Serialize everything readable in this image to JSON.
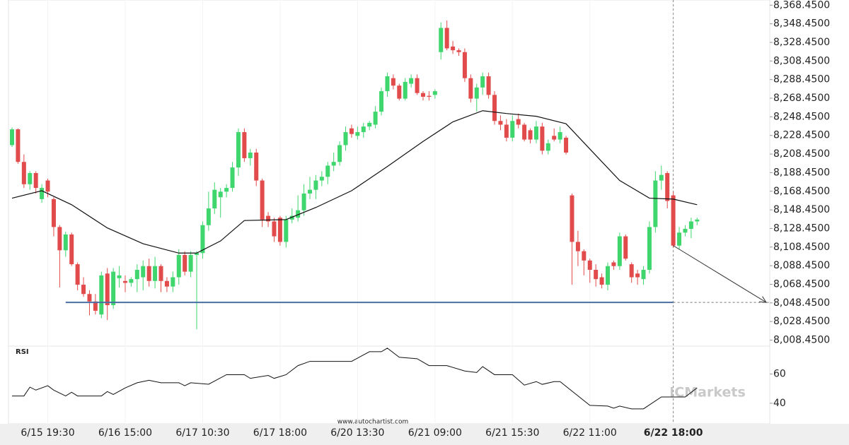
{
  "chart_data": {
    "type": "candlestick",
    "categories": [
      null,
      null,
      null,
      null,
      null,
      null,
      "6/15 19:30",
      null,
      null,
      null,
      null,
      null,
      null,
      null,
      null,
      null,
      null,
      null,
      null,
      "6/16 15:00",
      null,
      null,
      null,
      null,
      null,
      null,
      null,
      null,
      null,
      null,
      null,
      null,
      "6/17 10:30",
      null,
      null,
      null,
      null,
      null,
      null,
      null,
      null,
      null,
      null,
      null,
      null,
      "6/17 18:00",
      null,
      null,
      null,
      null,
      null,
      null,
      null,
      null,
      null,
      null,
      null,
      null,
      "6/20 13:30",
      null,
      null,
      null,
      null,
      null,
      null,
      null,
      null,
      null,
      null,
      null,
      null,
      "6/21 09:00",
      null,
      null,
      null,
      null,
      null,
      null,
      null,
      null,
      null,
      null,
      null,
      null,
      "6/21 15:30",
      null,
      null,
      null,
      null,
      null,
      null,
      null,
      null,
      null,
      null,
      null,
      null,
      "6/22 11:00",
      null,
      null,
      null,
      null,
      null,
      null,
      null,
      null,
      null,
      null,
      null,
      null,
      null,
      "6/22 18:00",
      null,
      null,
      null,
      null
    ],
    "open": [
      8218,
      8235,
      8200,
      8176,
      8188,
      8160,
      8180,
      8160,
      8130,
      8105,
      8122,
      8090,
      8068,
      8058,
      8050,
      8036,
      8080,
      8046,
      8075,
      8072,
      8070,
      8074,
      8076,
      8088,
      8072,
      8088,
      8072,
      8066,
      8076,
      8100,
      8082,
      8100,
      8102,
      8132,
      8150,
      8162,
      8168,
      8172,
      8194,
      8232,
      8204,
      8210,
      8180,
      8142,
      8136,
      8140,
      8114,
      8138,
      8140,
      8148,
      8166,
      8170,
      8180,
      8184,
      8196,
      8200,
      8218,
      8236,
      8228,
      8232,
      8238,
      8240,
      8254,
      8276,
      8290,
      8282,
      8268,
      8284,
      8290,
      8274,
      8271,
      8272,
      8318,
      8344,
      8324,
      8320,
      8318,
      8290,
      8268,
      8280,
      8292,
      8272,
      8244,
      8240,
      8226,
      8246,
      8240,
      8234,
      8224,
      8238,
      8212,
      8228,
      8224,
      8226,
      8164,
      8114,
      8104,
      8094,
      8084,
      8076,
      8068,
      8092,
      8088,
      8120,
      8090,
      8080,
      8074,
      8084,
      8130,
      8180,
      8188,
      8164,
      8110,
      8124,
      8128,
      8136
    ],
    "high": [
      8237,
      8236,
      8208,
      8190,
      8190,
      8176,
      8182,
      8162,
      8132,
      8125,
      8124,
      8092,
      8076,
      8062,
      8058,
      8082,
      8086,
      8086,
      8088,
      8078,
      8076,
      8090,
      8094,
      8096,
      8098,
      8090,
      8076,
      8082,
      8106,
      8104,
      8104,
      8104,
      8136,
      8168,
      8178,
      8172,
      8176,
      8200,
      8236,
      8236,
      8214,
      8214,
      8182,
      8146,
      8140,
      8142,
      8142,
      8150,
      8164,
      8176,
      8184,
      8186,
      8190,
      8200,
      8210,
      8222,
      8238,
      8240,
      8238,
      8242,
      8244,
      8260,
      8280,
      8296,
      8294,
      8284,
      8290,
      8294,
      8294,
      8276,
      8276,
      8278,
      8350,
      8352,
      8330,
      8322,
      8322,
      8294,
      8284,
      8296,
      8296,
      8276,
      8250,
      8246,
      8250,
      8252,
      8242,
      8236,
      8244,
      8242,
      8224,
      8236,
      8238,
      8228,
      8166,
      8126,
      8106,
      8096,
      8090,
      8080,
      8092,
      8094,
      8124,
      8122,
      8092,
      8084,
      8088,
      8136,
      8190,
      8196,
      8190,
      8168,
      8130,
      8132,
      8140,
      8140
    ],
    "low": [
      8216,
      8198,
      8172,
      8170,
      8166,
      8156,
      8162,
      8120,
      8065,
      8098,
      8088,
      8062,
      8055,
      8035,
      8036,
      8032,
      8030,
      8042,
      8065,
      8060,
      8066,
      8060,
      8062,
      8066,
      8064,
      8060,
      8060,
      8060,
      8068,
      8078,
      8076,
      8020,
      8096,
      8126,
      8144,
      8140,
      8162,
      8168,
      8185,
      8200,
      8196,
      8174,
      8130,
      8130,
      8114,
      8110,
      8108,
      8134,
      8136,
      8142,
      8160,
      8160,
      8174,
      8176,
      8190,
      8196,
      8212,
      8226,
      8224,
      8226,
      8234,
      8236,
      8250,
      8270,
      8278,
      8266,
      8266,
      8280,
      8272,
      8266,
      8266,
      8268,
      8310,
      8320,
      8316,
      8314,
      8286,
      8264,
      8254,
      8272,
      8268,
      8240,
      8234,
      8222,
      8222,
      8236,
      8222,
      8220,
      8220,
      8208,
      8208,
      8222,
      8220,
      8208,
      8068,
      8088,
      8078,
      8070,
      8066,
      8064,
      8062,
      8084,
      8084,
      8094,
      8070,
      8068,
      8068,
      8080,
      8124,
      8170,
      8150,
      8108,
      8106,
      8120,
      8118,
      8132
    ],
    "close": [
      8235,
      8200,
      8176,
      8188,
      8172,
      8172,
      8168,
      8130,
      8105,
      8122,
      8090,
      8068,
      8058,
      8050,
      8040,
      8078,
      8046,
      8082,
      8078,
      8070,
      8074,
      8084,
      8088,
      8072,
      8088,
      8072,
      8066,
      8076,
      8100,
      8082,
      8100,
      8102,
      8132,
      8150,
      8170,
      8168,
      8172,
      8194,
      8232,
      8204,
      8210,
      8180,
      8138,
      8136,
      8120,
      8114,
      8138,
      8142,
      8148,
      8166,
      8170,
      8180,
      8184,
      8196,
      8200,
      8218,
      8232,
      8230,
      8232,
      8238,
      8242,
      8254,
      8276,
      8292,
      8282,
      8268,
      8286,
      8290,
      8274,
      8270,
      8270,
      8276,
      8344,
      8322,
      8320,
      8318,
      8290,
      8268,
      8280,
      8292,
      8272,
      8244,
      8240,
      8226,
      8244,
      8240,
      8224,
      8224,
      8238,
      8212,
      8220,
      8224,
      8232,
      8210,
      8114,
      8104,
      8094,
      8084,
      8074,
      8068,
      8088,
      8088,
      8120,
      8096,
      8076,
      8076,
      8084,
      8130,
      8180,
      8186,
      8158,
      8110,
      8124,
      8128,
      8136,
      8138
    ],
    "up_color": "#3fd66e",
    "down_color": "#e24b4b",
    "moving_average": {
      "color": "#111111",
      "x": [
        0,
        5,
        10,
        16,
        22,
        28,
        31,
        35,
        39,
        46,
        51,
        57,
        63,
        69,
        74,
        79,
        83,
        88,
        93,
        98,
        102,
        107,
        111,
        115
      ],
      "values": [
        8161,
        8169,
        8154,
        8129,
        8112,
        8102,
        8102,
        8115,
        8137,
        8138,
        8151,
        8169,
        8195,
        8222,
        8243,
        8255,
        8252,
        8249,
        8241,
        8207,
        8180,
        8161,
        8160,
        8154
      ]
    },
    "support": {
      "value": 8049,
      "from": 9,
      "to": 111,
      "color": "#4a6fa5"
    },
    "ylim": [
      8002,
      8374
    ],
    "yticks": [
      {
        "value": 8368.45,
        "label": "8,368.4500"
      },
      {
        "value": 8348.45,
        "label": "8,348.4500"
      },
      {
        "value": 8328.45,
        "label": "8,328.4500"
      },
      {
        "value": 8308.45,
        "label": "8,308.4500"
      },
      {
        "value": 8288.45,
        "label": "8,288.4500"
      },
      {
        "value": 8268.45,
        "label": "8,268.4500"
      },
      {
        "value": 8248.45,
        "label": "8,248.4500"
      },
      {
        "value": 8228.45,
        "label": "8,228.4500"
      },
      {
        "value": 8208.45,
        "label": "8,208.4500"
      },
      {
        "value": 8188.45,
        "label": "8,188.4500"
      },
      {
        "value": 8168.45,
        "label": "8,168.4500"
      },
      {
        "value": 8148.45,
        "label": "8,148.4500"
      },
      {
        "value": 8128.45,
        "label": "8,128.4500"
      },
      {
        "value": 8108.45,
        "label": "8,108.4500"
      },
      {
        "value": 8088.45,
        "label": "8,088.4500"
      },
      {
        "value": 8068.45,
        "label": "8,068.4500"
      },
      {
        "value": 8048.45,
        "label": "8,048.4500"
      },
      {
        "value": 8028.45,
        "label": "8,028.4500"
      },
      {
        "value": 8008.45,
        "label": "8,008.4500"
      }
    ],
    "rsi": {
      "title": "RSI",
      "color": "#111111",
      "ylim": [
        26,
        79
      ],
      "yticks": [
        60,
        40
      ],
      "x": [
        0,
        2,
        3,
        4,
        6,
        7,
        9,
        10,
        11,
        15,
        16,
        17,
        19,
        21,
        23,
        25,
        28,
        29,
        30,
        33,
        36,
        39,
        40,
        43,
        44,
        46,
        48,
        50,
        57,
        60,
        62,
        63,
        65,
        68,
        70,
        73,
        76,
        78,
        79,
        81,
        84,
        86,
        88,
        89,
        91,
        92,
        97,
        100,
        101,
        102,
        104,
        106,
        109,
        113,
        115
      ],
      "values": [
        45,
        45,
        51,
        49,
        52,
        49,
        45,
        47.5,
        45,
        45,
        48,
        46,
        50.5,
        54,
        55.7,
        54,
        54,
        52,
        54,
        53,
        59.5,
        59.5,
        57,
        59,
        57,
        59.5,
        65.7,
        68.6,
        68.6,
        75.2,
        75.2,
        77.6,
        71.4,
        70.4,
        65.7,
        65.7,
        62,
        61,
        65,
        59.5,
        59.5,
        52.4,
        54.8,
        52.9,
        54.8,
        54.8,
        38.6,
        38.1,
        36.7,
        38.1,
        36.2,
        36.2,
        44.3,
        44.3,
        50.5
      ]
    },
    "watermarks": [
      "www.autochartist.com",
      "ICMarkets"
    ]
  }
}
